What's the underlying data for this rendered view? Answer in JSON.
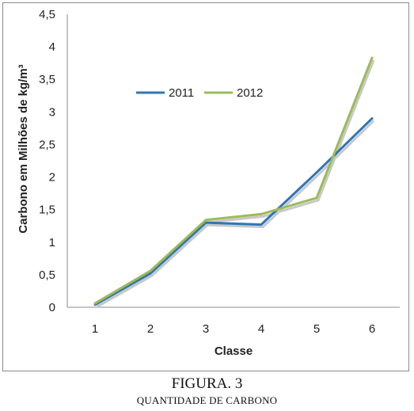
{
  "chart_data": {
    "type": "line",
    "x": [
      1,
      2,
      3,
      4,
      5,
      6
    ],
    "series": [
      {
        "name": "2011",
        "color": "#2e75b6",
        "values": [
          0.04,
          0.52,
          1.3,
          1.27,
          2.07,
          2.9
        ]
      },
      {
        "name": "2012",
        "color": "#9bbb59",
        "values": [
          0.06,
          0.56,
          1.34,
          1.43,
          1.68,
          3.83
        ]
      }
    ],
    "xlabel": "Classe",
    "ylabel": "Carbono em  Milhões de kg/m³",
    "ylim": [
      0,
      4.5
    ],
    "yticks": [
      "0",
      "0,5",
      "1",
      "1,5",
      "2",
      "2,5",
      "3",
      "3,5",
      "4",
      "4,5"
    ],
    "xticks": [
      "1",
      "2",
      "3",
      "4",
      "5",
      "6"
    ],
    "grid": false,
    "legend_position": "top-center"
  },
  "caption": {
    "title": "FIGURA. 3",
    "subtitle": "QUANTIDADE DE CARBONO"
  }
}
